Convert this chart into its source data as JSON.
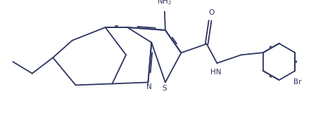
{
  "line_color": "#2d3561",
  "bg_color": "#ffffff",
  "lw": 1.3,
  "figsize": [
    4.59,
    1.84
  ],
  "dpi": 100,
  "xlim": [
    0,
    9.5
  ],
  "ylim": [
    0,
    3.8
  ]
}
